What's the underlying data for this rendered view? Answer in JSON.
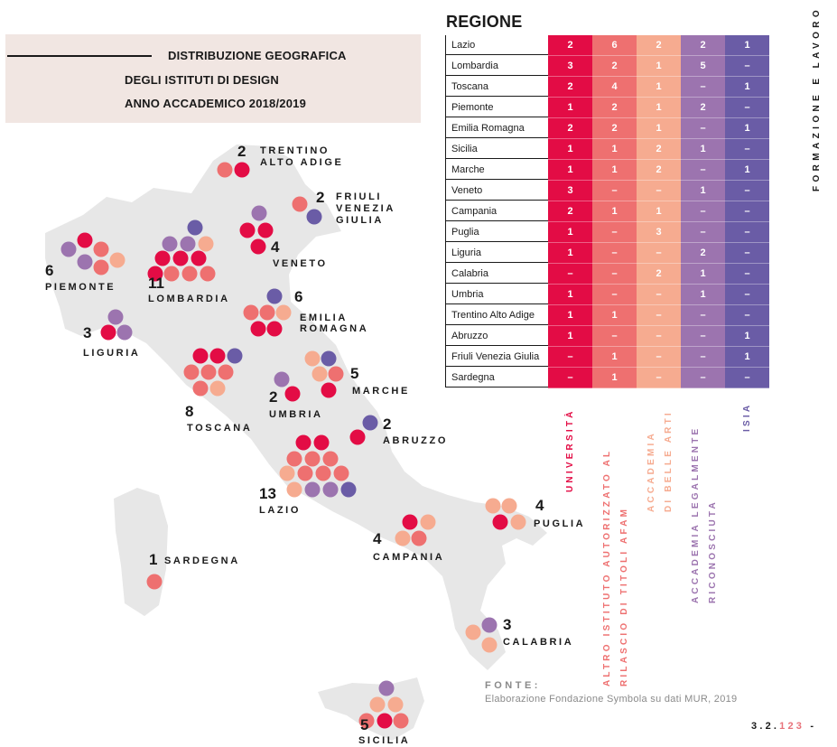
{
  "title": {
    "line1": "DISTRIBUZIONE GEOGRAFICA",
    "line2": "DEGLI ISTITUTI DI DESIGN",
    "line3": "ANNO ACCADEMICO 2018/2019"
  },
  "side_text": "FORMAZIONE E LAVORO",
  "colors": {
    "universita": "#e30c45",
    "altro_istituto": "#ee7070",
    "accademia_belle_arti": "#f6ab90",
    "accademia_riconosciuta": "#9c74af",
    "isia": "#6a5ca6",
    "map_fill": "#e7e7e7"
  },
  "map_labels": {
    "trentino": {
      "count": "2",
      "line1": "TRENTINO",
      "line2": "ALTO ADIGE"
    },
    "friuli": {
      "count": "2",
      "line1": "FRIULI",
      "line2": "VENEZIA",
      "line3": "GIULIA"
    },
    "veneto": {
      "count": "4",
      "name": "VENETO"
    },
    "piemonte": {
      "count": "6",
      "name": "PIEMONTE"
    },
    "lombardia": {
      "count": "11",
      "name": "LOMBARDIA"
    },
    "emilia": {
      "count": "6",
      "line1": "EMILIA",
      "line2": "ROMAGNA"
    },
    "liguria": {
      "count": "3",
      "name": "LIGURIA"
    },
    "marche": {
      "count": "5",
      "name": "MARCHE"
    },
    "toscana": {
      "count": "8",
      "name": "TOSCANA"
    },
    "umbria": {
      "count": "2",
      "name": "UMBRIA"
    },
    "abruzzo": {
      "count": "2",
      "name": "ABRUZZO"
    },
    "lazio": {
      "count": "13",
      "name": "LAZIO"
    },
    "puglia": {
      "count": "4",
      "name": "PUGLIA"
    },
    "campania": {
      "count": "4",
      "name": "CAMPANIA"
    },
    "sardegna": {
      "count": "1",
      "name": "SARDEGNA"
    },
    "calabria": {
      "count": "3",
      "name": "CALABRIA"
    },
    "sicilia": {
      "count": "5",
      "name": "SICILIA"
    }
  },
  "chart_data": {
    "type": "table",
    "title": "REGIONE",
    "columns": [
      "UNIVERSITÀ",
      "ALTRO ISTITUTO AUTORIZZATO AL RILASCIO DI TITOLI AFAM",
      "ACCADEMIA DI BELLE ARTI",
      "ACCADEMIA LEGALMENTE RICONOSCIUTA",
      "ISIA"
    ],
    "column_label_lines": [
      [
        "UNIVERSITÀ"
      ],
      [
        "ALTRO ISTITUTO AUTORIZZATO AL",
        "RILASCIO DI TITOLI AFAM"
      ],
      [
        "ACCADEMIA",
        "DI BELLE ARTI"
      ],
      [
        "ACCADEMIA LEGALMENTE",
        "RICONOSCIUTA"
      ],
      [
        "ISIA"
      ]
    ],
    "rows": [
      {
        "region": "Lazio",
        "values": [
          "2",
          "6",
          "2",
          "2",
          "1"
        ]
      },
      {
        "region": "Lombardia",
        "values": [
          "3",
          "2",
          "1",
          "5",
          "–"
        ]
      },
      {
        "region": "Toscana",
        "values": [
          "2",
          "4",
          "1",
          "–",
          "1"
        ]
      },
      {
        "region": "Piemonte",
        "values": [
          "1",
          "2",
          "1",
          "2",
          "–"
        ]
      },
      {
        "region": "Emilia Romagna",
        "values": [
          "2",
          "2",
          "1",
          "–",
          "1"
        ]
      },
      {
        "region": "Sicilia",
        "values": [
          "1",
          "1",
          "2",
          "1",
          "–"
        ]
      },
      {
        "region": "Marche",
        "values": [
          "1",
          "1",
          "2",
          "–",
          "1"
        ]
      },
      {
        "region": "Veneto",
        "values": [
          "3",
          "–",
          "–",
          "1",
          "–"
        ]
      },
      {
        "region": "Campania",
        "values": [
          "2",
          "1",
          "1",
          "–",
          "–"
        ]
      },
      {
        "region": "Puglia",
        "values": [
          "1",
          "–",
          "3",
          "–",
          "–"
        ]
      },
      {
        "region": "Liguria",
        "values": [
          "1",
          "–",
          "–",
          "2",
          "–"
        ]
      },
      {
        "region": "Calabria",
        "values": [
          "–",
          "–",
          "2",
          "1",
          "–"
        ]
      },
      {
        "region": "Umbria",
        "values": [
          "1",
          "–",
          "–",
          "1",
          "–"
        ]
      },
      {
        "region": "Trentino Alto Adige",
        "values": [
          "1",
          "1",
          "–",
          "–",
          "–"
        ]
      },
      {
        "region": "Abruzzo",
        "values": [
          "1",
          "–",
          "–",
          "–",
          "1"
        ]
      },
      {
        "region": "Friuli Venezia Giulia",
        "values": [
          "–",
          "1",
          "–",
          "–",
          "1"
        ]
      },
      {
        "region": "Sardegna",
        "values": [
          "–",
          "1",
          "–",
          "–",
          "–"
        ]
      }
    ]
  },
  "source": {
    "label": "FONTE:",
    "text": "Elaborazione Fondazione Symbola su dati MUR, 2019"
  },
  "page": {
    "prefix": "3.2.",
    "number": "123",
    "suffix": " -"
  }
}
